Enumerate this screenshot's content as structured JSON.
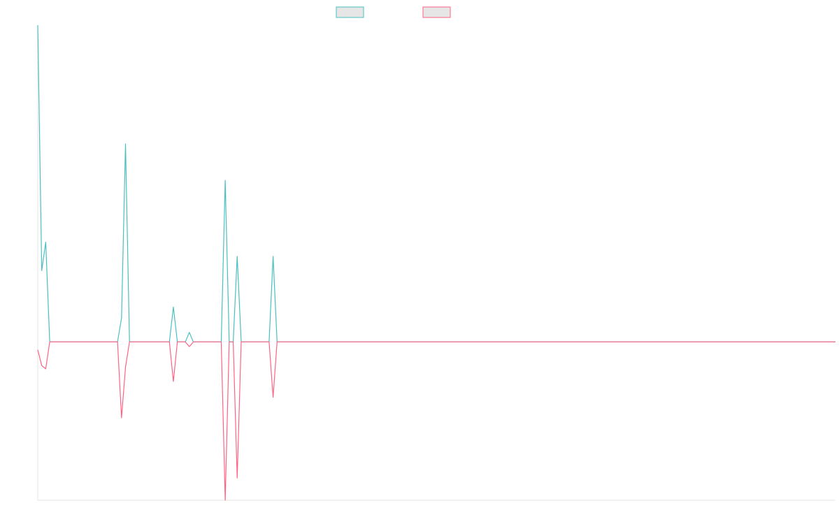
{
  "chart_data": {
    "type": "line",
    "title": "",
    "xlabel": "",
    "ylabel": "",
    "grid": false,
    "legend": {
      "placement": "top-center"
    },
    "x": [
      0,
      1,
      2,
      3,
      4,
      5,
      20,
      21,
      22,
      23,
      24,
      33,
      34,
      35,
      37,
      38,
      39,
      45,
      46,
      47,
      48,
      49,
      50,
      51,
      57,
      58,
      59,
      60,
      200
    ],
    "xlim": [
      0,
      200
    ],
    "ylim": [
      -100,
      200
    ],
    "series": [
      {
        "name": "",
        "color": "#4bc0c0",
        "values": [
          200,
          45,
          63,
          0,
          0,
          0,
          0,
          15,
          125,
          0,
          0,
          0,
          22,
          0,
          0,
          6,
          0,
          0,
          0,
          102,
          0,
          0,
          54,
          0,
          0,
          0,
          54,
          0,
          0
        ]
      },
      {
        "name": "",
        "color": "#ff6384",
        "values": [
          -5,
          -15,
          -17,
          0,
          0,
          0,
          0,
          -48,
          -16,
          0,
          0,
          0,
          -25,
          0,
          0,
          -3,
          0,
          0,
          0,
          -100,
          0,
          0,
          -86,
          0,
          0,
          0,
          -35,
          0,
          0
        ]
      }
    ]
  }
}
